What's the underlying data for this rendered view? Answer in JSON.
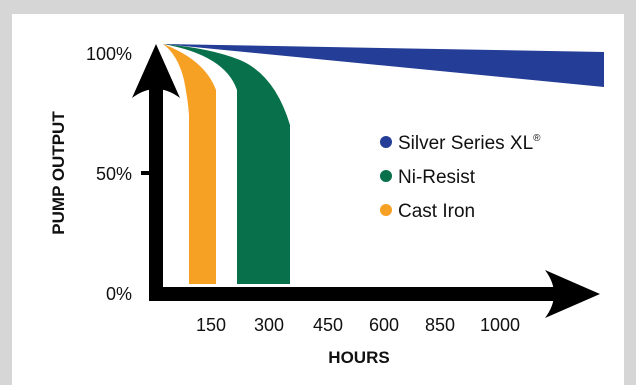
{
  "chart_data": {
    "type": "area",
    "title": "",
    "xlabel": "HOURS",
    "ylabel": "PUMP OUTPUT",
    "x_ticks": [
      "150",
      "300",
      "450",
      "600",
      "850",
      "1000"
    ],
    "y_ticks": [
      "0%",
      "50%",
      "100%"
    ],
    "ylim": [
      0,
      100
    ],
    "legend_position": "right",
    "series": [
      {
        "name": "Silver Series XL",
        "name_superscript": "®",
        "color": "#243d96",
        "description": "output degrades only slightly over time",
        "upper": [
          [
            0,
            100
          ],
          [
            1200,
            97
          ]
        ],
        "lower": [
          [
            0,
            100
          ],
          [
            1200,
            83
          ]
        ]
      },
      {
        "name": "Ni-Resist",
        "color": "#08704a",
        "description": "output drops to 0% between ~225 and ~375 hours"
      },
      {
        "name": "Cast Iron",
        "color": "#f6a024",
        "description": "output drops to 0% between ~90 and ~160 hours"
      }
    ]
  }
}
